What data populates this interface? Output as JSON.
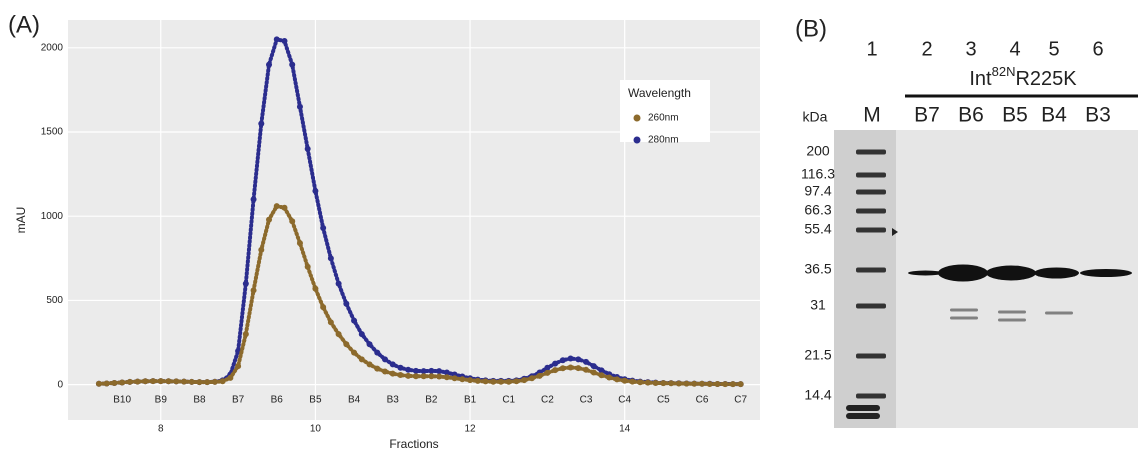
{
  "panel_labels": [
    "(A)",
    "(B)"
  ],
  "chart_data": {
    "type": "scatter",
    "xlabel": "Fractions",
    "ylabel": "mAU",
    "xlim": [
      6.8,
      15.75
    ],
    "ylim": [
      -210,
      2165
    ],
    "xticks": [
      8,
      10,
      12,
      14
    ],
    "yticks": [
      0,
      500,
      1000,
      1500,
      2000
    ],
    "grid": true,
    "legend_title": "Wavelength",
    "legend_position": "top-right",
    "x": [
      7.2,
      7.3,
      7.4,
      7.5,
      7.6,
      7.7,
      7.8,
      7.9,
      8.0,
      8.1,
      8.2,
      8.3,
      8.4,
      8.5,
      8.6,
      8.7,
      8.8,
      8.9,
      9.0,
      9.1,
      9.2,
      9.3,
      9.4,
      9.5,
      9.6,
      9.7,
      9.8,
      9.9,
      10.0,
      10.1,
      10.2,
      10.3,
      10.4,
      10.5,
      10.6,
      10.7,
      10.8,
      10.9,
      11.0,
      11.1,
      11.2,
      11.3,
      11.4,
      11.5,
      11.6,
      11.7,
      11.8,
      11.9,
      12.0,
      12.1,
      12.2,
      12.3,
      12.4,
      12.5,
      12.6,
      12.7,
      12.8,
      12.9,
      13.0,
      13.1,
      13.2,
      13.3,
      13.4,
      13.5,
      13.6,
      13.7,
      13.8,
      13.9,
      14.0,
      14.1,
      14.2,
      14.3,
      14.4,
      14.5,
      14.6,
      14.7,
      14.8,
      14.9,
      15.0,
      15.1,
      15.2,
      15.3,
      15.4,
      15.5
    ],
    "series": [
      {
        "name": "260nm",
        "color": "#8c6a2c",
        "values": [
          5,
          7,
          10,
          13,
          16,
          18,
          20,
          21,
          21,
          20,
          19,
          18,
          16,
          15,
          15,
          16,
          20,
          40,
          110,
          300,
          560,
          800,
          980,
          1060,
          1050,
          970,
          840,
          700,
          570,
          460,
          370,
          300,
          240,
          190,
          150,
          120,
          95,
          78,
          65,
          57,
          52,
          50,
          50,
          50,
          48,
          44,
          38,
          32,
          27,
          22,
          19,
          17,
          17,
          17,
          20,
          27,
          38,
          52,
          70,
          86,
          97,
          102,
          98,
          88,
          72,
          56,
          42,
          31,
          23,
          18,
          14,
          12,
          10,
          9,
          8,
          7,
          6,
          5,
          5,
          4,
          4,
          3,
          3,
          3
        ]
      },
      {
        "name": "280nm",
        "color": "#2b2d8e",
        "values": [
          5,
          7,
          10,
          13,
          16,
          18,
          20,
          21,
          21,
          20,
          19,
          18,
          16,
          15,
          15,
          17,
          25,
          60,
          200,
          600,
          1100,
          1550,
          1900,
          2050,
          2040,
          1900,
          1650,
          1400,
          1150,
          930,
          750,
          600,
          480,
          380,
          300,
          240,
          190,
          150,
          120,
          100,
          88,
          82,
          80,
          82,
          80,
          72,
          60,
          48,
          38,
          30,
          25,
          22,
          22,
          22,
          25,
          35,
          50,
          72,
          100,
          125,
          145,
          155,
          150,
          135,
          110,
          85,
          62,
          45,
          32,
          24,
          18,
          15,
          12,
          10,
          9,
          8,
          7,
          6,
          5,
          5,
          4,
          4,
          3,
          3
        ]
      }
    ],
    "annotations": [
      {
        "text": "B10",
        "x": 7.5
      },
      {
        "text": "B9",
        "x": 8.0
      },
      {
        "text": "B8",
        "x": 8.5
      },
      {
        "text": "B7",
        "x": 9.0
      },
      {
        "text": "B6",
        "x": 9.5
      },
      {
        "text": "B5",
        "x": 10.0
      },
      {
        "text": "B4",
        "x": 10.5
      },
      {
        "text": "B3",
        "x": 11.0
      },
      {
        "text": "B2",
        "x": 11.5
      },
      {
        "text": "B1",
        "x": 12.0
      },
      {
        "text": "C1",
        "x": 12.5
      },
      {
        "text": "C2",
        "x": 13.0
      },
      {
        "text": "C3",
        "x": 13.5
      },
      {
        "text": "C4",
        "x": 14.0
      },
      {
        "text": "C5",
        "x": 14.5
      },
      {
        "text": "C6",
        "x": 15.0
      },
      {
        "text": "C7",
        "x": 15.5
      }
    ]
  },
  "gel": {
    "lane_numbers": [
      "1",
      "2",
      "3",
      "4",
      "5",
      "6"
    ],
    "construct": {
      "base": "Int",
      "sup": "82N",
      "rest": "R225K"
    },
    "unit": "kDa",
    "lane_labels": [
      "M",
      "B7",
      "B6",
      "B5",
      "B4",
      "B3"
    ],
    "markers": [
      "200",
      "116.3",
      "97.4",
      "66.3",
      "55.4",
      "36.5",
      "31",
      "21.5",
      "14.4"
    ]
  }
}
